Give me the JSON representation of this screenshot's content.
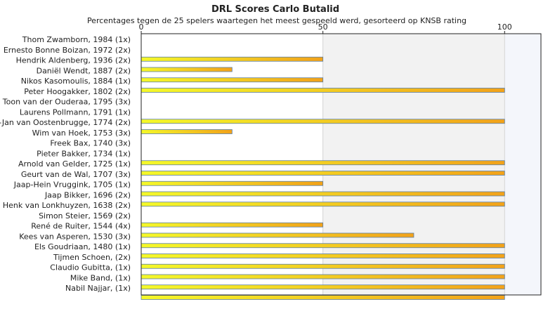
{
  "chart_data": {
    "type": "bar",
    "orientation": "horizontal",
    "title": "DRL Scores Carlo Butalid",
    "subtitle": "Percentages tegen de 25 spelers waartegen het meest gespeeld werd, gesorteerd op KNSB rating",
    "xlabel": "",
    "ylabel": "",
    "xlim": [
      0,
      110
    ],
    "xticks": [
      0,
      50,
      100
    ],
    "grid": true,
    "categories": [
      "Thom Zwamborn, 1984 (1x)",
      "Ernesto Bonne Boizan, 1972 (2x)",
      "Hendrik Aldenberg, 1936 (2x)",
      "Daniël Wendt, 1887 (2x)",
      "Nikos Kasomoulis, 1884 (1x)",
      "Peter Hoogakker, 1802 (2x)",
      "Toon van der Ouderaa, 1795 (3x)",
      "Laurens Pollmann, 1791 (1x)",
      "t-Jan van Oostenbrugge, 1774 (2x)",
      "Wim van Hoek, 1753 (3x)",
      "Freek Bax, 1740 (3x)",
      "Pieter Bakker, 1734 (1x)",
      "Arnold van Gelder, 1725 (1x)",
      "Geurt van de Wal, 1707 (3x)",
      "Jaap-Hein Vruggink, 1705 (1x)",
      "Jaap Bikker, 1696 (2x)",
      "Henk van Lonkhuyzen, 1638 (2x)",
      "Simon Steier, 1569 (2x)",
      "René de Ruiter, 1544 (4x)",
      "Kees van Asperen, 1530 (3x)",
      "Els Goudriaan, 1480 (1x)",
      "Tijmen Schoen,  (2x)",
      "Claudio Gubitta,  (1x)",
      "Mike Band,  (1x)",
      "Nabil Najjar,  (1x)"
    ],
    "values": [
      0,
      50,
      25,
      50,
      100,
      0,
      0,
      100,
      25,
      0,
      0,
      100,
      100,
      50,
      100,
      100,
      0,
      50,
      75,
      100,
      100,
      100,
      100,
      100,
      100
    ],
    "colors": {
      "bar_start": "#f4f82a",
      "bar_end": "#f2a21a",
      "bar_stroke": "#5a7fa8",
      "plot_bg": "#f2f2f2",
      "plot_bg_light": "#ffffff",
      "plot_bg_right": "#f4f6fb",
      "grid": "#d4d4d4",
      "axis": "#222222"
    }
  }
}
